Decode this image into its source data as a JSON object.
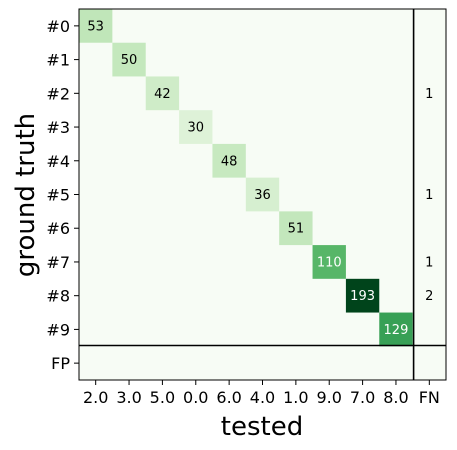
{
  "chart_data": {
    "type": "heatmap",
    "title": "",
    "xlabel": "tested",
    "ylabel": "ground truth",
    "x_categories": [
      "2.0",
      "3.0",
      "5.0",
      "0.0",
      "6.0",
      "4.0",
      "1.0",
      "9.0",
      "7.0",
      "8.0",
      "FN"
    ],
    "y_categories": [
      "#0",
      "#1",
      "#2",
      "#3",
      "#4",
      "#5",
      "#6",
      "#7",
      "#8",
      "#9",
      "FP"
    ],
    "cells": [
      {
        "row": 0,
        "col": 0,
        "value": 53
      },
      {
        "row": 1,
        "col": 1,
        "value": 50
      },
      {
        "row": 2,
        "col": 2,
        "value": 42
      },
      {
        "row": 3,
        "col": 3,
        "value": 30
      },
      {
        "row": 4,
        "col": 4,
        "value": 48
      },
      {
        "row": 5,
        "col": 5,
        "value": 36
      },
      {
        "row": 6,
        "col": 6,
        "value": 51
      },
      {
        "row": 7,
        "col": 7,
        "value": 110
      },
      {
        "row": 8,
        "col": 8,
        "value": 193
      },
      {
        "row": 9,
        "col": 9,
        "value": 129
      },
      {
        "row": 2,
        "col": 10,
        "value": 1
      },
      {
        "row": 5,
        "col": 10,
        "value": 1
      },
      {
        "row": 7,
        "col": 10,
        "value": 1
      },
      {
        "row": 8,
        "col": 10,
        "value": 2
      }
    ],
    "colormap": "Greens",
    "value_range": [
      0,
      193
    ],
    "grid": false
  }
}
